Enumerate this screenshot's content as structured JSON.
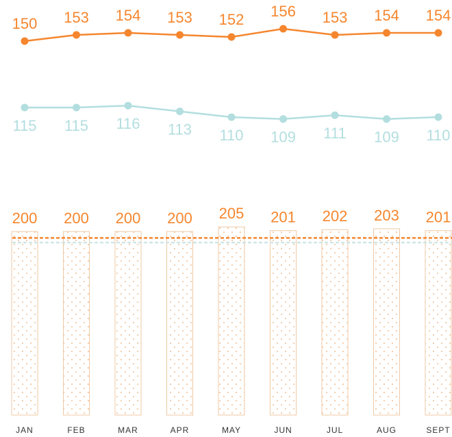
{
  "chart_data": [
    {
      "type": "line",
      "color": "#f5862e",
      "label_side": "above",
      "ylim": [
        140,
        160
      ],
      "values": [
        150,
        153,
        154,
        153,
        152,
        156,
        153,
        154,
        154
      ]
    },
    {
      "type": "line",
      "color": "#b3dedf",
      "label_side": "below",
      "ylim": [
        100,
        120
      ],
      "values": [
        115,
        115,
        116,
        113,
        110,
        109,
        111,
        109,
        110
      ]
    },
    {
      "type": "bar",
      "color": "#f5862e",
      "bar_color": "#efc9a6",
      "ylim": [
        0,
        210
      ],
      "categories": [
        "JAN",
        "FEB",
        "MAR",
        "APR",
        "MAY",
        "JUN",
        "JUL",
        "AUG",
        "SEPT"
      ],
      "values": [
        200,
        200,
        200,
        200,
        205,
        201,
        202,
        203,
        201
      ],
      "reference_lines": [
        {
          "color": "#f5862e",
          "value": 193
        },
        {
          "color": "#cfe6e6",
          "value": 188
        }
      ]
    }
  ]
}
